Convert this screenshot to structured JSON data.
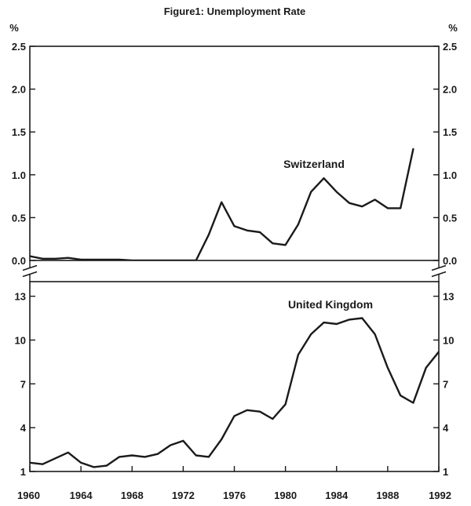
{
  "chart_data": [
    {
      "type": "line",
      "title": "Figure1: Unemployment Rate",
      "ylabel": "%",
      "ylim": [
        0,
        2.5
      ],
      "yticks": [
        "0.0",
        "0.5",
        "1.0",
        "1.5",
        "2.0",
        "2.5"
      ],
      "series": [
        {
          "name": "Switzerland",
          "x": [
            1960,
            1961,
            1962,
            1963,
            1964,
            1965,
            1966,
            1967,
            1968,
            1969,
            1970,
            1971,
            1972,
            1973,
            1974,
            1975,
            1976,
            1977,
            1978,
            1979,
            1980,
            1981,
            1982,
            1983,
            1984,
            1985,
            1986,
            1987,
            1988,
            1989,
            1990
          ],
          "values": [
            0.05,
            0.02,
            0.02,
            0.03,
            0.01,
            0.01,
            0.01,
            0.01,
            0.0,
            0.0,
            0.0,
            0.0,
            0.0,
            0.0,
            0.3,
            0.68,
            0.4,
            0.35,
            0.33,
            0.2,
            0.18,
            0.42,
            0.8,
            0.96,
            0.8,
            0.67,
            0.63,
            0.71,
            0.61,
            0.61,
            1.3
          ]
        }
      ]
    },
    {
      "type": "line",
      "ylim": [
        1,
        14
      ],
      "yticks": [
        "1",
        "4",
        "7",
        "10",
        "13"
      ],
      "xticks": [
        "1960",
        "1964",
        "1968",
        "1972",
        "1976",
        "1980",
        "1984",
        "1988",
        "1992"
      ],
      "xlim": [
        1960,
        1992
      ],
      "series": [
        {
          "name": "United Kingdom",
          "x": [
            1960,
            1961,
            1962,
            1963,
            1964,
            1965,
            1966,
            1967,
            1968,
            1969,
            1970,
            1971,
            1972,
            1973,
            1974,
            1975,
            1976,
            1977,
            1978,
            1979,
            1980,
            1981,
            1982,
            1983,
            1984,
            1985,
            1986,
            1987,
            1988,
            1989,
            1990,
            1991,
            1992
          ],
          "values": [
            1.6,
            1.5,
            1.9,
            2.3,
            1.6,
            1.3,
            1.4,
            2.0,
            2.1,
            2.0,
            2.2,
            2.8,
            3.1,
            2.1,
            2.0,
            3.2,
            4.8,
            5.2,
            5.1,
            4.6,
            5.6,
            9.0,
            10.4,
            11.2,
            11.1,
            11.4,
            11.5,
            10.4,
            8.1,
            6.2,
            5.7,
            8.1,
            9.2
          ]
        }
      ]
    }
  ]
}
